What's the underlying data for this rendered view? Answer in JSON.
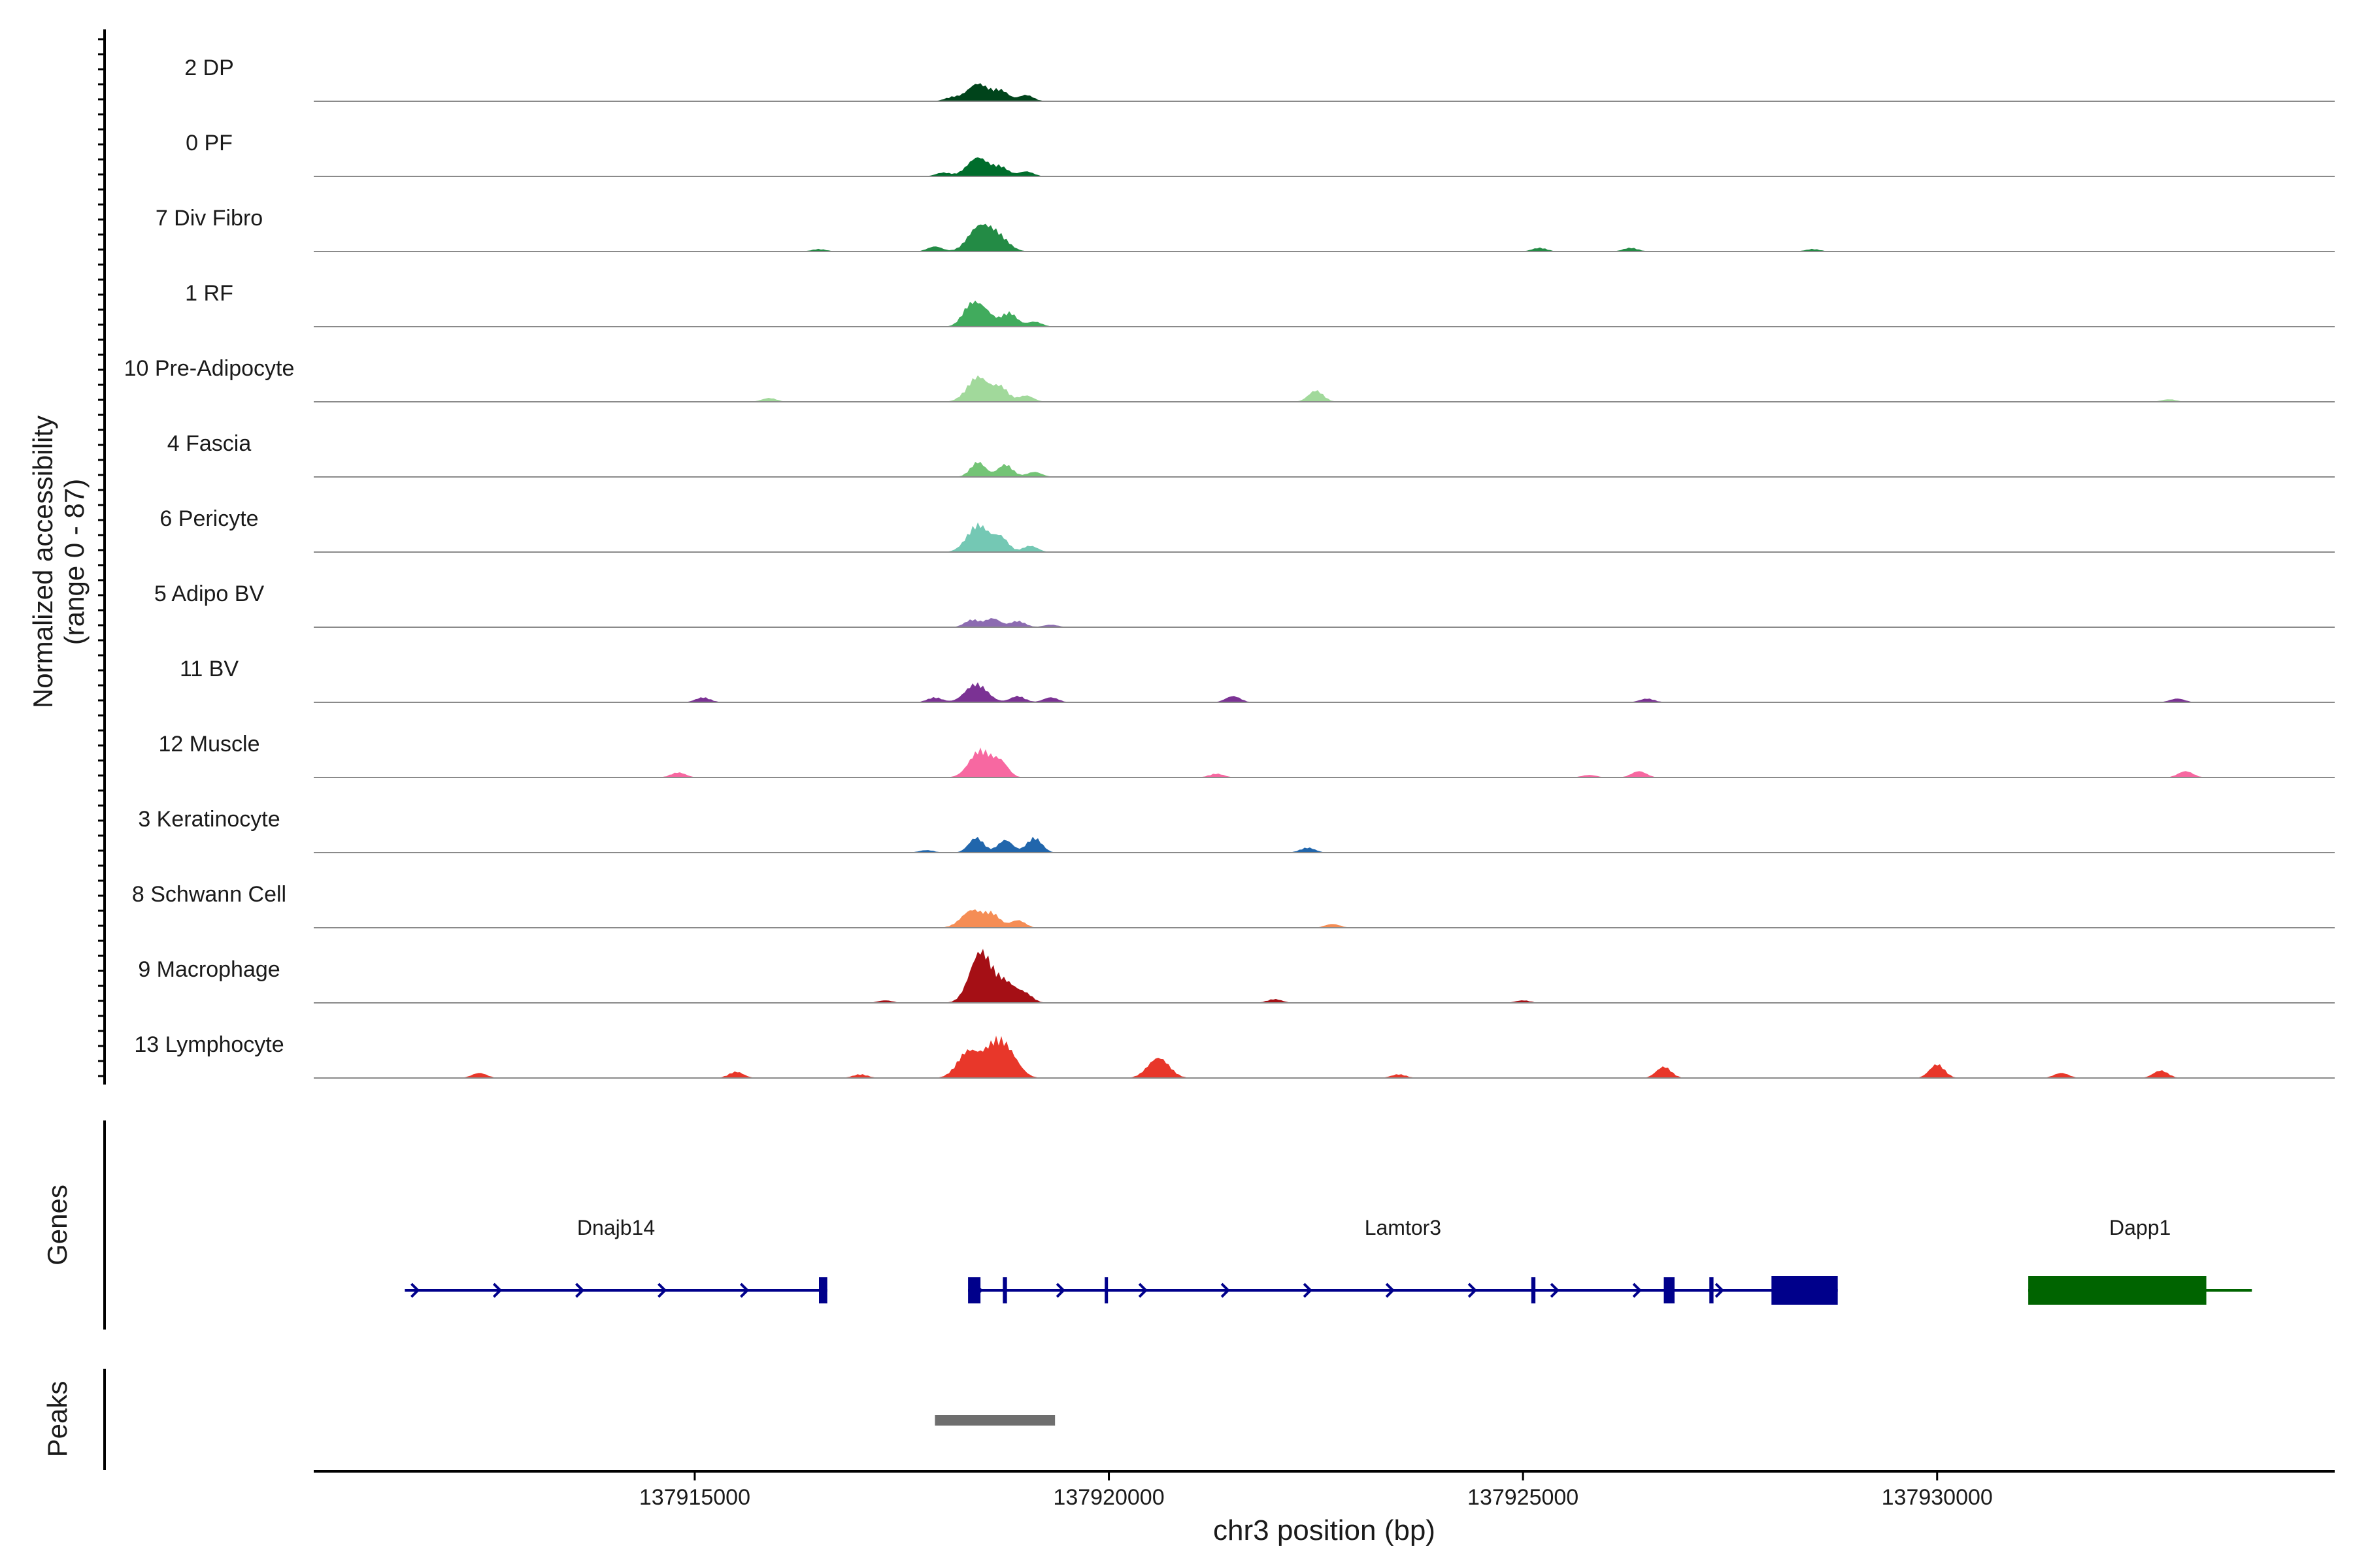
{
  "chart_data": {
    "type": "area",
    "subtype": "genome-browser-coverage",
    "ylabel_line1": "Normalized accessibility",
    "ylabel_line2": "(range 0 - 87)",
    "y_range": [
      0,
      87
    ],
    "xlabel": "chr3 position (bp)",
    "xlim": [
      137910400,
      137934800
    ],
    "x_ticks": [
      137915000,
      137920000,
      137925000,
      137930000
    ],
    "x_tick_labels": [
      "137915000",
      "137920000",
      "137925000",
      "137930000"
    ],
    "tracks": [
      {
        "label": "2 DP",
        "color": "#00441b",
        "peaks": [
          [
            137918420,
            28
          ],
          [
            137918700,
            16
          ],
          [
            137919000,
            10
          ],
          [
            137918100,
            6
          ]
        ]
      },
      {
        "label": "0 PF",
        "color": "#006d2c",
        "peaks": [
          [
            137918420,
            30
          ],
          [
            137918700,
            14
          ],
          [
            137919000,
            8
          ],
          [
            137918000,
            6
          ]
        ]
      },
      {
        "label": "7 Div Fibro",
        "color": "#238b45",
        "peaks": [
          [
            137918420,
            36
          ],
          [
            137918650,
            26
          ],
          [
            137917900,
            8
          ],
          [
            137916500,
            4
          ],
          [
            137925200,
            6
          ],
          [
            137926300,
            6
          ],
          [
            137928500,
            4
          ]
        ]
      },
      {
        "label": "1 RF",
        "color": "#41ab5d",
        "peaks": [
          [
            137918300,
            18
          ],
          [
            137918450,
            32
          ],
          [
            137918800,
            22
          ],
          [
            137919100,
            8
          ]
        ]
      },
      {
        "label": "10 Pre-Adipocyte",
        "color": "#a1d99b",
        "peaks": [
          [
            137918420,
            40
          ],
          [
            137918700,
            22
          ],
          [
            137919000,
            10
          ],
          [
            137922500,
            18
          ],
          [
            137915900,
            6
          ],
          [
            137932800,
            4
          ]
        ]
      },
      {
        "label": "4 Fascia",
        "color": "#74c476",
        "peaks": [
          [
            137918420,
            24
          ],
          [
            137918750,
            20
          ],
          [
            137919100,
            8
          ]
        ]
      },
      {
        "label": "6 Pericyte",
        "color": "#74c8b4",
        "peaks": [
          [
            137918420,
            44
          ],
          [
            137918700,
            22
          ],
          [
            137919050,
            10
          ]
        ]
      },
      {
        "label": "5 Adipo BV",
        "color": "#8c6bb1",
        "peaks": [
          [
            137918350,
            12
          ],
          [
            137918600,
            14
          ],
          [
            137918900,
            10
          ],
          [
            137919300,
            4
          ]
        ]
      },
      {
        "label": "11 BV",
        "color": "#7b3294",
        "peaks": [
          [
            137918400,
            30
          ],
          [
            137917900,
            8
          ],
          [
            137918900,
            10
          ],
          [
            137919300,
            8
          ],
          [
            137921500,
            10
          ],
          [
            137915100,
            8
          ],
          [
            137932900,
            6
          ],
          [
            137926500,
            6
          ]
        ]
      },
      {
        "label": "12 Muscle",
        "color": "#f768a1",
        "peaks": [
          [
            137918450,
            44
          ],
          [
            137918700,
            22
          ],
          [
            137914800,
            8
          ],
          [
            137921300,
            6
          ],
          [
            137926400,
            10
          ],
          [
            137933000,
            10
          ],
          [
            137925800,
            4
          ]
        ]
      },
      {
        "label": "3 Keratinocyte",
        "color": "#2166ac",
        "peaks": [
          [
            137918400,
            24
          ],
          [
            137918750,
            20
          ],
          [
            137919100,
            24
          ],
          [
            137922400,
            8
          ],
          [
            137917800,
            4
          ]
        ]
      },
      {
        "label": "8 Schwann Cell",
        "color": "#f58d55",
        "peaks": [
          [
            137918350,
            28
          ],
          [
            137918600,
            20
          ],
          [
            137918900,
            12
          ],
          [
            137922700,
            6
          ]
        ]
      },
      {
        "label": "9 Macrophage",
        "color": "#a50f15",
        "peaks": [
          [
            137918450,
            80
          ],
          [
            137918750,
            32
          ],
          [
            137919000,
            12
          ],
          [
            137922000,
            6
          ],
          [
            137917300,
            4
          ],
          [
            137925000,
            4
          ]
        ]
      },
      {
        "label": "13 Lymphocyte",
        "color": "#e8372a",
        "peaks": [
          [
            137918300,
            42
          ],
          [
            137918620,
            48
          ],
          [
            137918800,
            30
          ],
          [
            137920600,
            32
          ],
          [
            137912400,
            8
          ],
          [
            137915500,
            10
          ],
          [
            137926700,
            18
          ],
          [
            137930000,
            22
          ],
          [
            137931500,
            8
          ],
          [
            137932700,
            12
          ],
          [
            137917000,
            6
          ],
          [
            137923500,
            6
          ]
        ]
      }
    ],
    "gene_track": {
      "label": "Genes",
      "genes": [
        {
          "name": "Dnajb14",
          "start": 137911500,
          "end": 137916600,
          "strand": "+",
          "color": "#00008b",
          "exons": [
            [
              137916500,
              137916600
            ]
          ]
        },
        {
          "name": "Lamtor3",
          "start": 137918300,
          "end": 137928800,
          "strand": "+",
          "color": "#00008b",
          "exons": [
            [
              137918300,
              137918450
            ],
            [
              137918720,
              137918770
            ],
            [
              137919950,
              137919980
            ],
            [
              137925100,
              137925150
            ],
            [
              137926700,
              137926830
            ],
            [
              137927250,
              137927300
            ],
            [
              137928000,
              137928800
            ]
          ]
        },
        {
          "name": "Dapp1",
          "start": 137931100,
          "end": 137933800,
          "strand": "-",
          "color": "#006400",
          "exons": [
            [
              137931100,
              137933250
            ]
          ]
        }
      ]
    },
    "peak_track": {
      "label": "Peaks",
      "color": "#6e6e6e",
      "regions": [
        [
          137917900,
          137919350
        ]
      ]
    }
  }
}
